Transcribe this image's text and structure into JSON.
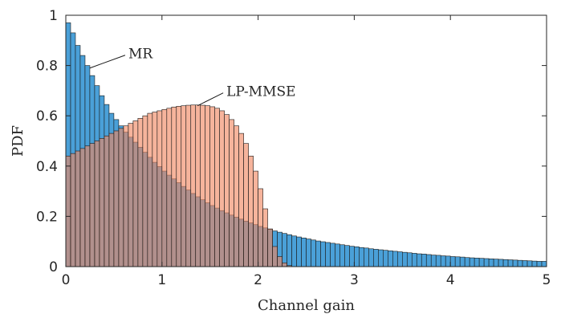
{
  "chart_data": {
    "type": "histogram",
    "xlabel": "Channel gain",
    "ylabel": "PDF",
    "xlim": [
      0,
      5
    ],
    "ylim": [
      0,
      1
    ],
    "x_ticks": [
      "0",
      "1",
      "2",
      "3",
      "4",
      "5"
    ],
    "y_ticks": [
      "0",
      "0.2",
      "0.4",
      "0.6",
      "0.8",
      "1"
    ],
    "grid": false,
    "bin_width": 0.05,
    "annotations": [
      {
        "text": "MR",
        "target_series": 0,
        "x": 0.25,
        "y": 0.79
      },
      {
        "text": "LP-MMSE",
        "target_series": 1,
        "x": 1.37,
        "y": 0.64
      }
    ],
    "series": [
      {
        "name": "MR",
        "color": "#4aa0d8",
        "start": 0,
        "bin_values": [
          0.97,
          0.93,
          0.88,
          0.84,
          0.8,
          0.76,
          0.72,
          0.68,
          0.645,
          0.61,
          0.585,
          0.56,
          0.535,
          0.515,
          0.495,
          0.475,
          0.455,
          0.435,
          0.415,
          0.398,
          0.38,
          0.364,
          0.349,
          0.334,
          0.319,
          0.305,
          0.291,
          0.278,
          0.266,
          0.254,
          0.243,
          0.233,
          0.223,
          0.214,
          0.205,
          0.197,
          0.189,
          0.181,
          0.174,
          0.167,
          0.16,
          0.154,
          0.148,
          0.142,
          0.137,
          0.132,
          0.127,
          0.122,
          0.118,
          0.114,
          0.11,
          0.106,
          0.102,
          0.099,
          0.096,
          0.093,
          0.09,
          0.087,
          0.084,
          0.081,
          0.079,
          0.076,
          0.074,
          0.071,
          0.069,
          0.067,
          0.065,
          0.063,
          0.061,
          0.059,
          0.057,
          0.055,
          0.053,
          0.051,
          0.05,
          0.048,
          0.046,
          0.045,
          0.043,
          0.042,
          0.04,
          0.039,
          0.038,
          0.036,
          0.035,
          0.034,
          0.033,
          0.032,
          0.031,
          0.03,
          0.029,
          0.028,
          0.027,
          0.026,
          0.025,
          0.024,
          0.023,
          0.022,
          0.021,
          0.021
        ]
      },
      {
        "name": "LP-MMSE",
        "color": "#f08660",
        "start": 0,
        "bin_values": [
          0.44,
          0.45,
          0.46,
          0.47,
          0.48,
          0.49,
          0.5,
          0.51,
          0.52,
          0.53,
          0.54,
          0.55,
          0.56,
          0.57,
          0.58,
          0.59,
          0.6,
          0.61,
          0.615,
          0.62,
          0.625,
          0.63,
          0.635,
          0.638,
          0.64,
          0.642,
          0.643,
          0.643,
          0.642,
          0.64,
          0.636,
          0.63,
          0.62,
          0.605,
          0.585,
          0.56,
          0.53,
          0.49,
          0.44,
          0.38,
          0.31,
          0.23,
          0.15,
          0.08,
          0.04,
          0.015,
          0.004
        ]
      }
    ]
  }
}
